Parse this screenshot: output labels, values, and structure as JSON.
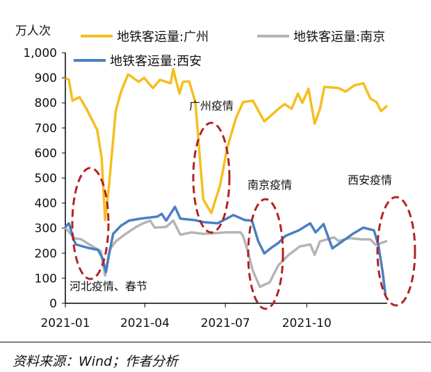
{
  "chart_data": {
    "type": "line",
    "ylabel": "万人次",
    "ylim": [
      0,
      1000
    ],
    "yticks": [
      0,
      100,
      200,
      300,
      400,
      500,
      600,
      700,
      800,
      900,
      1000
    ],
    "ytick_labels": [
      "0",
      "100",
      "200",
      "300",
      "400",
      "500",
      "600",
      "700",
      "800",
      "900",
      "1,000"
    ],
    "xticks": [
      "2021-01",
      "2021-04",
      "2021-07",
      "2021-10"
    ],
    "xlim": [
      "2021-01-01",
      "2021-12-31"
    ],
    "grid": false,
    "legend_placement": "top",
    "series": [
      {
        "name": "地铁客运量:广州",
        "color": "#F5BE1E",
        "points": [
          [
            "2021-01-01",
            900
          ],
          [
            "2021-01-05",
            892
          ],
          [
            "2021-01-09",
            809
          ],
          [
            "2021-01-17",
            823
          ],
          [
            "2021-01-25",
            776
          ],
          [
            "2021-02-06",
            692
          ],
          [
            "2021-02-11",
            582
          ],
          [
            "2021-02-15",
            332
          ],
          [
            "2021-02-19",
            455
          ],
          [
            "2021-02-27",
            767
          ],
          [
            "2021-03-05",
            845
          ],
          [
            "2021-03-13",
            914
          ],
          [
            "2021-03-25",
            884
          ],
          [
            "2021-03-31",
            900
          ],
          [
            "2021-04-10",
            859
          ],
          [
            "2021-04-18",
            892
          ],
          [
            "2021-04-30",
            878
          ],
          [
            "2021-05-03",
            934
          ],
          [
            "2021-05-10",
            837
          ],
          [
            "2021-05-14",
            884
          ],
          [
            "2021-05-21",
            886
          ],
          [
            "2021-05-28",
            803
          ],
          [
            "2021-06-01",
            629
          ],
          [
            "2021-06-06",
            415
          ],
          [
            "2021-06-15",
            360
          ],
          [
            "2021-06-25",
            471
          ],
          [
            "2021-07-03",
            620
          ],
          [
            "2021-07-13",
            740
          ],
          [
            "2021-07-21",
            803
          ],
          [
            "2021-08-01",
            809
          ],
          [
            "2021-08-14",
            726
          ],
          [
            "2021-08-30",
            776
          ],
          [
            "2021-09-06",
            795
          ],
          [
            "2021-09-14",
            776
          ],
          [
            "2021-09-21",
            837
          ],
          [
            "2021-09-26",
            800
          ],
          [
            "2021-10-03",
            856
          ],
          [
            "2021-10-10",
            717
          ],
          [
            "2021-10-16",
            776
          ],
          [
            "2021-10-21",
            864
          ],
          [
            "2021-11-06",
            859
          ],
          [
            "2021-11-14",
            845
          ],
          [
            "2021-11-24",
            870
          ],
          [
            "2021-12-04",
            878
          ],
          [
            "2021-12-12",
            817
          ],
          [
            "2021-12-19",
            803
          ],
          [
            "2021-12-24",
            767
          ],
          [
            "2021-12-31",
            789
          ]
        ]
      },
      {
        "name": "地铁客运量:南京",
        "color": "#B4B4B4",
        "points": [
          [
            "2021-01-01",
            302
          ],
          [
            "2021-01-11",
            260
          ],
          [
            "2021-01-19",
            255
          ],
          [
            "2021-01-29",
            233
          ],
          [
            "2021-02-10",
            208
          ],
          [
            "2021-02-15",
            111
          ],
          [
            "2021-02-20",
            213
          ],
          [
            "2021-02-27",
            247
          ],
          [
            "2021-03-09",
            274
          ],
          [
            "2021-03-22",
            305
          ],
          [
            "2021-03-30",
            319
          ],
          [
            "2021-04-07",
            330
          ],
          [
            "2021-04-12",
            302
          ],
          [
            "2021-04-25",
            305
          ],
          [
            "2021-05-03",
            330
          ],
          [
            "2021-05-11",
            274
          ],
          [
            "2021-05-24",
            283
          ],
          [
            "2021-06-06",
            277
          ],
          [
            "2021-07-03",
            283
          ],
          [
            "2021-07-18",
            283
          ],
          [
            "2021-07-21",
            269
          ],
          [
            "2021-07-26",
            213
          ],
          [
            "2021-08-01",
            130
          ],
          [
            "2021-08-09",
            66
          ],
          [
            "2021-08-20",
            83
          ],
          [
            "2021-08-30",
            152
          ],
          [
            "2021-09-10",
            191
          ],
          [
            "2021-09-23",
            227
          ],
          [
            "2021-10-05",
            235
          ],
          [
            "2021-10-10",
            194
          ],
          [
            "2021-10-16",
            247
          ],
          [
            "2021-11-01",
            263
          ],
          [
            "2021-11-06",
            249
          ],
          [
            "2021-11-19",
            260
          ],
          [
            "2021-12-02",
            255
          ],
          [
            "2021-12-12",
            255
          ],
          [
            "2021-12-18",
            233
          ],
          [
            "2021-12-31",
            249
          ]
        ]
      },
      {
        "name": "地铁客运量:西安",
        "color": "#4A7FC1",
        "points": [
          [
            "2021-01-01",
            305
          ],
          [
            "2021-01-05",
            319
          ],
          [
            "2021-01-11",
            249
          ],
          [
            "2021-01-13",
            235
          ],
          [
            "2021-01-26",
            222
          ],
          [
            "2021-02-07",
            213
          ],
          [
            "2021-02-12",
            180
          ],
          [
            "2021-02-16",
            125
          ],
          [
            "2021-02-19",
            186
          ],
          [
            "2021-02-24",
            277
          ],
          [
            "2021-03-05",
            310
          ],
          [
            "2021-03-14",
            330
          ],
          [
            "2021-03-27",
            338
          ],
          [
            "2021-04-15",
            346
          ],
          [
            "2021-04-20",
            357
          ],
          [
            "2021-04-25",
            330
          ],
          [
            "2021-05-05",
            385
          ],
          [
            "2021-05-11",
            338
          ],
          [
            "2021-05-27",
            332
          ],
          [
            "2021-06-06",
            324
          ],
          [
            "2021-06-22",
            319
          ],
          [
            "2021-07-10",
            352
          ],
          [
            "2021-07-23",
            332
          ],
          [
            "2021-07-31",
            330
          ],
          [
            "2021-08-07",
            249
          ],
          [
            "2021-08-14",
            199
          ],
          [
            "2021-08-22",
            222
          ],
          [
            "2021-08-30",
            241
          ],
          [
            "2021-09-07",
            269
          ],
          [
            "2021-09-22",
            291
          ],
          [
            "2021-10-05",
            319
          ],
          [
            "2021-10-11",
            283
          ],
          [
            "2021-10-20",
            316
          ],
          [
            "2021-10-30",
            219
          ],
          [
            "2021-11-11",
            249
          ],
          [
            "2021-11-22",
            277
          ],
          [
            "2021-12-04",
            302
          ],
          [
            "2021-12-16",
            291
          ],
          [
            "2021-12-21",
            233
          ],
          [
            "2021-12-26",
            122
          ],
          [
            "2021-12-29",
            33
          ]
        ]
      }
    ],
    "annotations": [
      "河北疫情、春节",
      "广州疫情",
      "南京疫情",
      "西安疫情"
    ],
    "annotation_color": "#B22222"
  },
  "source": "资料来源：Wind；作者分析"
}
